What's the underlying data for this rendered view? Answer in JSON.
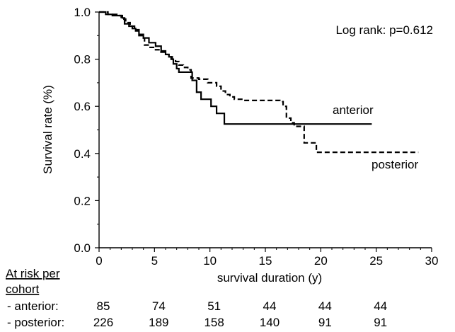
{
  "chart_data": {
    "type": "line",
    "title": "",
    "xlabel": "survival duration (y)",
    "ylabel": "Survival rate (%)",
    "xlim": [
      0,
      30
    ],
    "ylim": [
      0,
      1.0
    ],
    "x_ticks": [
      0,
      5,
      10,
      15,
      20,
      25,
      30
    ],
    "y_ticks": [
      0.0,
      0.2,
      0.4,
      0.6,
      0.8,
      1.0
    ],
    "grid": false,
    "annotation": "Log rank: p=0.612",
    "series": [
      {
        "name": "anterior",
        "line_style": "solid",
        "color": "#000000",
        "points": [
          [
            0,
            1.0
          ],
          [
            0.6,
            0.99
          ],
          [
            1.2,
            0.985
          ],
          [
            2.1,
            0.975
          ],
          [
            2.3,
            0.95
          ],
          [
            2.7,
            0.94
          ],
          [
            3.0,
            0.93
          ],
          [
            3.3,
            0.92
          ],
          [
            3.6,
            0.9
          ],
          [
            4.0,
            0.89
          ],
          [
            4.5,
            0.87
          ],
          [
            5.1,
            0.855
          ],
          [
            5.6,
            0.835
          ],
          [
            6.0,
            0.82
          ],
          [
            6.3,
            0.81
          ],
          [
            6.5,
            0.8
          ],
          [
            6.7,
            0.78
          ],
          [
            7.0,
            0.76
          ],
          [
            7.2,
            0.745
          ],
          [
            8.4,
            0.71
          ],
          [
            8.8,
            0.66
          ],
          [
            9.2,
            0.63
          ],
          [
            10.1,
            0.6
          ],
          [
            10.6,
            0.57
          ],
          [
            11.3,
            0.525
          ],
          [
            24.6,
            0.525
          ]
        ]
      },
      {
        "name": "posterior",
        "line_style": "dashed",
        "color": "#000000",
        "points": [
          [
            0,
            1.0
          ],
          [
            0.8,
            0.99
          ],
          [
            1.6,
            0.985
          ],
          [
            2.0,
            0.97
          ],
          [
            2.4,
            0.955
          ],
          [
            2.8,
            0.94
          ],
          [
            3.2,
            0.925
          ],
          [
            3.6,
            0.905
          ],
          [
            4.0,
            0.89
          ],
          [
            4.1,
            0.86
          ],
          [
            4.5,
            0.85
          ],
          [
            5.0,
            0.84
          ],
          [
            5.5,
            0.83
          ],
          [
            6.0,
            0.82
          ],
          [
            6.3,
            0.81
          ],
          [
            6.6,
            0.8
          ],
          [
            6.9,
            0.79
          ],
          [
            7.2,
            0.775
          ],
          [
            7.6,
            0.765
          ],
          [
            8.0,
            0.755
          ],
          [
            8.3,
            0.72
          ],
          [
            9.0,
            0.715
          ],
          [
            9.8,
            0.7
          ],
          [
            10.6,
            0.685
          ],
          [
            11.0,
            0.665
          ],
          [
            11.4,
            0.65
          ],
          [
            11.8,
            0.64
          ],
          [
            12.2,
            0.63
          ],
          [
            13.0,
            0.625
          ],
          [
            16.1,
            0.625
          ],
          [
            16.3,
            0.62
          ],
          [
            16.6,
            0.6
          ],
          [
            16.9,
            0.55
          ],
          [
            17.3,
            0.53
          ],
          [
            17.6,
            0.515
          ],
          [
            18.3,
            0.515
          ],
          [
            18.5,
            0.445
          ],
          [
            19.4,
            0.445
          ],
          [
            19.6,
            0.405
          ],
          [
            28.8,
            0.405
          ]
        ]
      }
    ],
    "series_labels": [
      "anterior",
      "posterior"
    ],
    "at_risk": {
      "heading": "At risk per cohort",
      "heading_lines": [
        "At risk per",
        "cohort"
      ],
      "columns": [
        0,
        5,
        10,
        15,
        20,
        25
      ],
      "rows": [
        {
          "label": "- anterior:",
          "values": [
            "85",
            "74",
            "51",
            "44",
            "44",
            "44"
          ]
        },
        {
          "label": "- posterior:",
          "values": [
            "226",
            "189",
            "158",
            "140",
            "91",
            "91"
          ]
        }
      ]
    }
  }
}
